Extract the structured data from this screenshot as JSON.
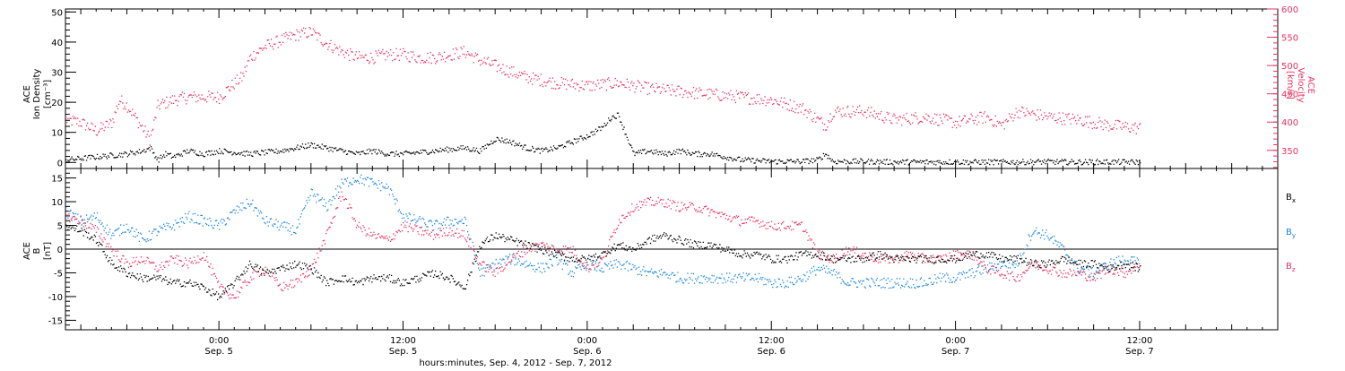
{
  "x_axis": {
    "label": "hours:minutes, Sep.  4, 2012 - Sep.  7, 2012",
    "ticks": [
      {
        "h": 24,
        "top": "0:00",
        "bottom": "Sep. 5"
      },
      {
        "h": 36,
        "top": "12:00",
        "bottom": "Sep. 5"
      },
      {
        "h": 48,
        "top": "0:00",
        "bottom": "Sep. 6"
      },
      {
        "h": 60,
        "top": "12:00",
        "bottom": "Sep. 6"
      },
      {
        "h": 72,
        "top": "0:00",
        "bottom": "Sep. 7"
      },
      {
        "h": 84,
        "top": "12:00",
        "bottom": "Sep. 7"
      }
    ]
  },
  "colors": {
    "black": "#000000",
    "pink": "#e8325f",
    "blue": "#1a86e0"
  },
  "chart_data": [
    {
      "type": "scatter",
      "panel": "top",
      "x_unit": "hours since 2012-09-04 00:00",
      "xlim": [
        14,
        93
      ],
      "ylabel_left": [
        "ACE",
        "Ion Density",
        "[cm⁻³]"
      ],
      "ylabel_right": [
        "ACE",
        "Velocity",
        "[km/s]"
      ],
      "ylim_left": [
        -2,
        51
      ],
      "ylim_right": [
        318,
        600
      ],
      "yticks_left": [
        0,
        10,
        20,
        30,
        40,
        50
      ],
      "yticks_right": [
        350,
        400,
        450,
        500,
        550,
        600
      ],
      "series": [
        {
          "axis": "left",
          "color": "#000000",
          "x": [
            14,
            16,
            18,
            19,
            19.5,
            20,
            20.5,
            21,
            22,
            23,
            24,
            26,
            28,
            29,
            30,
            31,
            32,
            33,
            34,
            35,
            36,
            38,
            40,
            41,
            42,
            43,
            44,
            45,
            46,
            47,
            48,
            49,
            49.5,
            50,
            51,
            52,
            53,
            54,
            55,
            56,
            57,
            58,
            60,
            62,
            63,
            63.5,
            64,
            66,
            68,
            70,
            72,
            74,
            76,
            78,
            80,
            82,
            84
          ],
          "y": [
            1,
            2,
            3,
            4,
            5,
            1,
            3,
            2,
            4,
            3,
            4,
            3,
            4,
            5,
            6,
            5,
            4,
            3,
            4,
            3,
            3,
            4,
            5,
            4,
            8,
            7,
            5,
            4,
            5,
            7,
            9,
            12,
            15,
            16,
            3,
            4,
            3,
            4,
            3,
            3,
            2,
            1,
            0.5,
            0.5,
            1,
            3,
            0.5,
            0.5,
            0.3,
            0.3,
            0.3,
            0.3,
            0.3,
            0.4,
            0.3,
            0.3,
            0.3
          ]
        },
        {
          "axis": "right",
          "color": "#e8325f",
          "x": [
            14,
            15,
            16,
            17,
            17.5,
            18,
            19,
            19.5,
            20,
            21,
            22,
            23,
            24,
            25,
            25.5,
            26,
            27,
            28,
            29,
            30,
            31,
            32,
            33,
            34,
            35,
            36,
            37,
            38,
            39,
            40,
            41,
            42,
            43,
            44,
            46,
            48,
            50,
            52,
            54,
            56,
            58,
            60,
            62,
            63,
            63.5,
            64,
            66,
            68,
            70,
            72,
            74,
            75,
            76,
            78,
            80,
            82,
            84
          ],
          "y": [
            405,
            400,
            385,
            400,
            440,
            430,
            390,
            370,
            430,
            440,
            445,
            445,
            445,
            470,
            480,
            515,
            535,
            545,
            555,
            560,
            540,
            525,
            515,
            515,
            520,
            520,
            515,
            515,
            520,
            525,
            510,
            500,
            490,
            480,
            470,
            465,
            470,
            460,
            455,
            450,
            445,
            440,
            425,
            405,
            395,
            420,
            420,
            405,
            410,
            400,
            410,
            395,
            420,
            410,
            405,
            395,
            390
          ]
        }
      ]
    },
    {
      "type": "scatter",
      "panel": "bottom",
      "x_unit": "hours since 2012-09-04 00:00",
      "xlim": [
        14,
        93
      ],
      "ylabel_left": [
        "ACE",
        "B",
        "[nT]"
      ],
      "ylim": [
        -17,
        17
      ],
      "yticks": [
        -15,
        -10,
        -5,
        0,
        5,
        10,
        15
      ],
      "zero_line": true,
      "legend": "right",
      "series": [
        {
          "name": "Bx",
          "color": "#000000",
          "x": [
            14,
            15,
            16,
            17,
            18,
            19,
            20,
            21,
            22,
            23,
            24,
            25,
            26,
            27,
            28,
            29,
            30,
            31,
            32,
            33,
            34,
            35,
            36,
            37,
            38,
            39,
            40,
            41,
            42,
            43,
            44,
            45,
            46,
            47,
            48,
            49,
            50,
            51,
            52,
            53,
            54,
            55,
            56,
            57,
            58,
            59,
            60,
            61,
            62,
            63,
            64,
            65,
            66,
            67,
            68,
            69,
            70,
            71,
            72,
            73,
            74,
            75,
            76,
            77,
            78,
            79,
            80,
            81,
            82,
            83,
            84
          ],
          "y": [
            5,
            4,
            2,
            -3,
            -5,
            -6,
            -6,
            -7,
            -7,
            -8,
            -10,
            -7,
            -3,
            -5,
            -4,
            -3,
            -4,
            -7,
            -6,
            -7,
            -6,
            -6,
            -7,
            -6,
            -5,
            -6,
            -8,
            1,
            3,
            2,
            1,
            0,
            -1,
            -2,
            -2,
            -1,
            1,
            0,
            2,
            3,
            2,
            1,
            1,
            0,
            -1,
            -1,
            -2,
            -2,
            -1,
            -1,
            -2,
            -2,
            -2,
            -1,
            -2,
            -2,
            -2,
            -2,
            -2,
            -1,
            -1,
            -2,
            -2,
            -3,
            -3,
            -2,
            -3,
            -3,
            -4,
            -3,
            -4
          ]
        },
        {
          "name": "By",
          "color": "#1a86e0",
          "x": [
            14,
            15,
            16,
            17,
            18,
            19,
            20,
            21,
            22,
            23,
            24,
            25,
            26,
            27,
            28,
            29,
            30,
            31,
            32,
            33,
            34,
            35,
            36,
            37,
            38,
            39,
            40,
            41,
            42,
            43,
            44,
            45,
            46,
            47,
            48,
            49,
            50,
            51,
            52,
            53,
            54,
            55,
            56,
            57,
            58,
            59,
            60,
            61,
            62,
            63,
            64,
            65,
            66,
            67,
            68,
            69,
            70,
            71,
            72,
            73,
            74,
            75,
            76,
            77,
            78,
            79,
            80,
            81,
            82,
            83,
            84
          ],
          "y": [
            8,
            6,
            7,
            3,
            5,
            2,
            4,
            5,
            7,
            6,
            5,
            8,
            10,
            6,
            5,
            4,
            12,
            9,
            14,
            15,
            14,
            13,
            7,
            6,
            5,
            6,
            6,
            -5,
            -3,
            -2,
            -3,
            -4,
            -2,
            -5,
            -3,
            -4,
            -3,
            -4,
            -5,
            -5,
            -6,
            -6,
            -6,
            -6,
            -6,
            -6,
            -7,
            -7,
            -6,
            -4,
            -5,
            -7,
            -7,
            -7,
            -7,
            -7,
            -7,
            -6,
            -6,
            -5,
            -4,
            -3,
            -3,
            4,
            3,
            0,
            -4,
            -5,
            -3,
            -2,
            -3
          ]
        },
        {
          "name": "Bz",
          "color": "#e8325f",
          "x": [
            14,
            15,
            16,
            17,
            18,
            19,
            20,
            21,
            22,
            23,
            24,
            25,
            26,
            27,
            28,
            29,
            30,
            31,
            32,
            33,
            34,
            35,
            36,
            37,
            38,
            39,
            40,
            41,
            42,
            43,
            44,
            45,
            46,
            47,
            48,
            49,
            50,
            51,
            52,
            53,
            54,
            55,
            56,
            57,
            58,
            59,
            60,
            61,
            62,
            63,
            64,
            65,
            66,
            67,
            68,
            69,
            70,
            71,
            72,
            73,
            74,
            75,
            76,
            77,
            78,
            79,
            80,
            81,
            82,
            83,
            84
          ],
          "y": [
            7,
            6,
            4,
            0,
            -3,
            -2,
            -4,
            -2,
            -3,
            -1,
            -8,
            -10,
            -6,
            -4,
            -8,
            -7,
            -4,
            3,
            12,
            5,
            3,
            2,
            5,
            4,
            3,
            4,
            3,
            -3,
            -5,
            -2,
            0,
            1,
            0,
            0,
            -4,
            -2,
            6,
            9,
            10,
            10,
            9,
            9,
            8,
            7,
            6,
            6,
            5,
            5,
            5,
            -1,
            -2,
            0,
            -1,
            -2,
            -2,
            -1,
            -2,
            -2,
            -1,
            -1,
            -4,
            -5,
            -6,
            -3,
            -4,
            -5,
            -5,
            -6,
            -4,
            -5,
            -3
          ]
        }
      ]
    }
  ]
}
